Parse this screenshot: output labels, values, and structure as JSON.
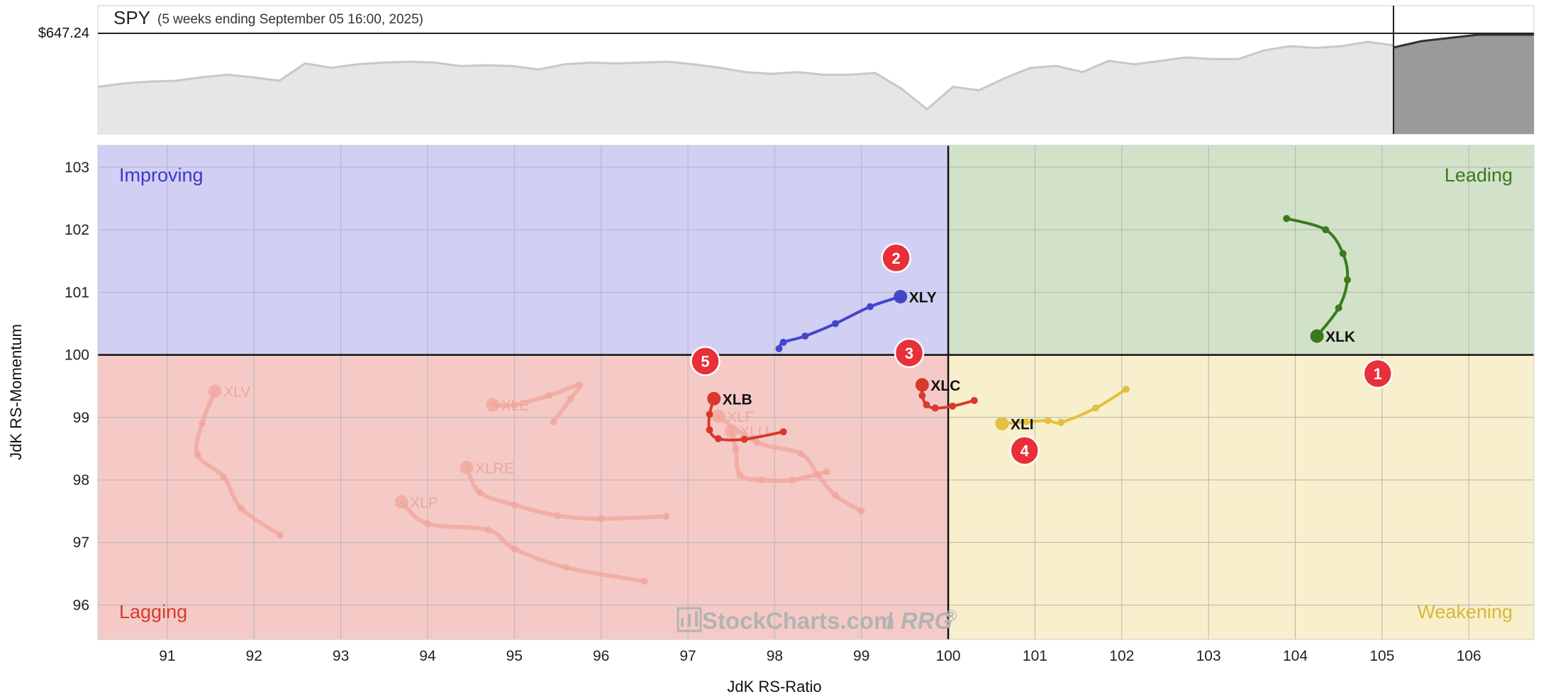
{
  "header": {
    "symbol": "SPY",
    "subtitle": "(5 weeks ending September 05 16:00, 2025)",
    "price": "$647.24"
  },
  "watermark": {
    "brand": "StockCharts.com",
    "product": "RRG",
    "reg": "®"
  },
  "chart_data": [
    {
      "type": "area",
      "name_ref": "SPY",
      "ylim": [
        0,
        100
      ],
      "values": [
        48,
        52,
        54,
        55,
        59,
        62,
        59,
        55,
        75,
        70,
        74,
        76,
        77,
        76,
        72,
        73,
        72,
        68,
        74,
        76,
        75,
        76,
        77,
        74,
        70,
        65,
        63,
        65,
        62,
        62,
        64,
        46,
        22,
        48,
        44,
        58,
        70,
        72,
        65,
        78,
        74,
        78,
        82,
        80,
        80,
        90,
        95,
        93,
        95,
        100,
        96
      ],
      "future_values": [
        96,
        98,
        99,
        100,
        100,
        100
      ]
    },
    {
      "type": "scatter",
      "xlabel": "JdK RS-Ratio",
      "ylabel": "JdK RS-Momentum",
      "xlim": [
        90.2,
        106.75
      ],
      "ylim": [
        95.45,
        103.35
      ],
      "x_ticks": [
        91,
        92,
        93,
        94,
        95,
        96,
        97,
        98,
        99,
        100,
        101,
        102,
        103,
        104,
        105,
        106
      ],
      "y_ticks": [
        96,
        97,
        98,
        99,
        100,
        101,
        102,
        103
      ],
      "center": [
        100,
        100
      ],
      "quadrants": [
        {
          "name": "Improving",
          "color": "#3a3ac8",
          "fill": "#d1cff3"
        },
        {
          "name": "Leading",
          "color": "#3a7a1e",
          "fill": "#d1e2c8"
        },
        {
          "name": "Lagging",
          "color": "#d8392b",
          "fill": "#f5cac6"
        },
        {
          "name": "Weakening",
          "color": "#d8b838",
          "fill": "#f8efcc"
        }
      ],
      "series": [
        {
          "name": "XLK",
          "color": "#3a7a1e",
          "active": true,
          "badge": "1",
          "points": [
            [
              103.9,
              102.18
            ],
            [
              104.35,
              102.0
            ],
            [
              104.55,
              101.62
            ],
            [
              104.6,
              101.2
            ],
            [
              104.5,
              100.75
            ],
            [
              104.25,
              100.3
            ]
          ]
        },
        {
          "name": "XLY",
          "color": "#4545cc",
          "active": true,
          "badge": "2",
          "points": [
            [
              98.05,
              100.1
            ],
            [
              98.1,
              100.2
            ],
            [
              98.35,
              100.3
            ],
            [
              98.7,
              100.5
            ],
            [
              99.1,
              100.77
            ],
            [
              99.45,
              100.93
            ]
          ]
        },
        {
          "name": "XLC",
          "color": "#d8392b",
          "active": true,
          "badge": "3",
          "points": [
            [
              100.3,
              99.27
            ],
            [
              100.05,
              99.18
            ],
            [
              99.85,
              99.15
            ],
            [
              99.75,
              99.2
            ],
            [
              99.7,
              99.35
            ],
            [
              99.7,
              99.52
            ]
          ]
        },
        {
          "name": "XLI",
          "color": "#e2c040",
          "active": true,
          "badge": "4",
          "points": [
            [
              102.05,
              99.45
            ],
            [
              101.7,
              99.15
            ],
            [
              101.3,
              98.92
            ],
            [
              101.15,
              98.95
            ],
            [
              100.9,
              98.93
            ],
            [
              100.62,
              98.9
            ]
          ]
        },
        {
          "name": "XLB",
          "color": "#d8392b",
          "active": true,
          "badge": "5",
          "points": [
            [
              98.1,
              98.77
            ],
            [
              97.65,
              98.65
            ],
            [
              97.35,
              98.66
            ],
            [
              97.25,
              98.8
            ],
            [
              97.25,
              99.05
            ],
            [
              97.3,
              99.3
            ]
          ]
        },
        {
          "name": "XLV",
          "color": "#f0a59b",
          "active": false,
          "points": [
            [
              92.3,
              97.12
            ],
            [
              91.85,
              97.55
            ],
            [
              91.65,
              98.05
            ],
            [
              91.35,
              98.4
            ],
            [
              91.4,
              98.9
            ],
            [
              91.55,
              99.42
            ]
          ]
        },
        {
          "name": "XLE",
          "color": "#f0a59b",
          "active": false,
          "points": [
            [
              95.45,
              98.93
            ],
            [
              95.65,
              99.3
            ],
            [
              95.75,
              99.52
            ],
            [
              95.4,
              99.35
            ],
            [
              95.0,
              99.2
            ],
            [
              94.75,
              99.2
            ]
          ]
        },
        {
          "name": "XLF",
          "color": "#f0a59b",
          "active": false,
          "points": [
            [
              99.0,
              97.5
            ],
            [
              98.7,
              97.75
            ],
            [
              98.5,
              98.08
            ],
            [
              98.3,
              98.42
            ],
            [
              97.8,
              98.6
            ],
            [
              97.35,
              99.02
            ]
          ]
        },
        {
          "name": "XLU",
          "color": "#f0a59b",
          "active": false,
          "points": [
            [
              98.6,
              98.13
            ],
            [
              98.2,
              98.0
            ],
            [
              97.85,
              98.0
            ],
            [
              97.6,
              98.08
            ],
            [
              97.55,
              98.5
            ],
            [
              97.5,
              98.78
            ]
          ]
        },
        {
          "name": "XLRE",
          "color": "#f0a59b",
          "active": false,
          "points": [
            [
              96.75,
              97.42
            ],
            [
              96.0,
              97.38
            ],
            [
              95.5,
              97.43
            ],
            [
              95.0,
              97.6
            ],
            [
              94.6,
              97.8
            ],
            [
              94.45,
              98.2
            ]
          ]
        },
        {
          "name": "XLP",
          "color": "#f0a59b",
          "active": false,
          "points": [
            [
              96.5,
              96.38
            ],
            [
              95.6,
              96.6
            ],
            [
              95.0,
              96.9
            ],
            [
              94.7,
              97.2
            ],
            [
              94.0,
              97.3
            ],
            [
              93.7,
              97.65
            ]
          ]
        }
      ]
    }
  ]
}
